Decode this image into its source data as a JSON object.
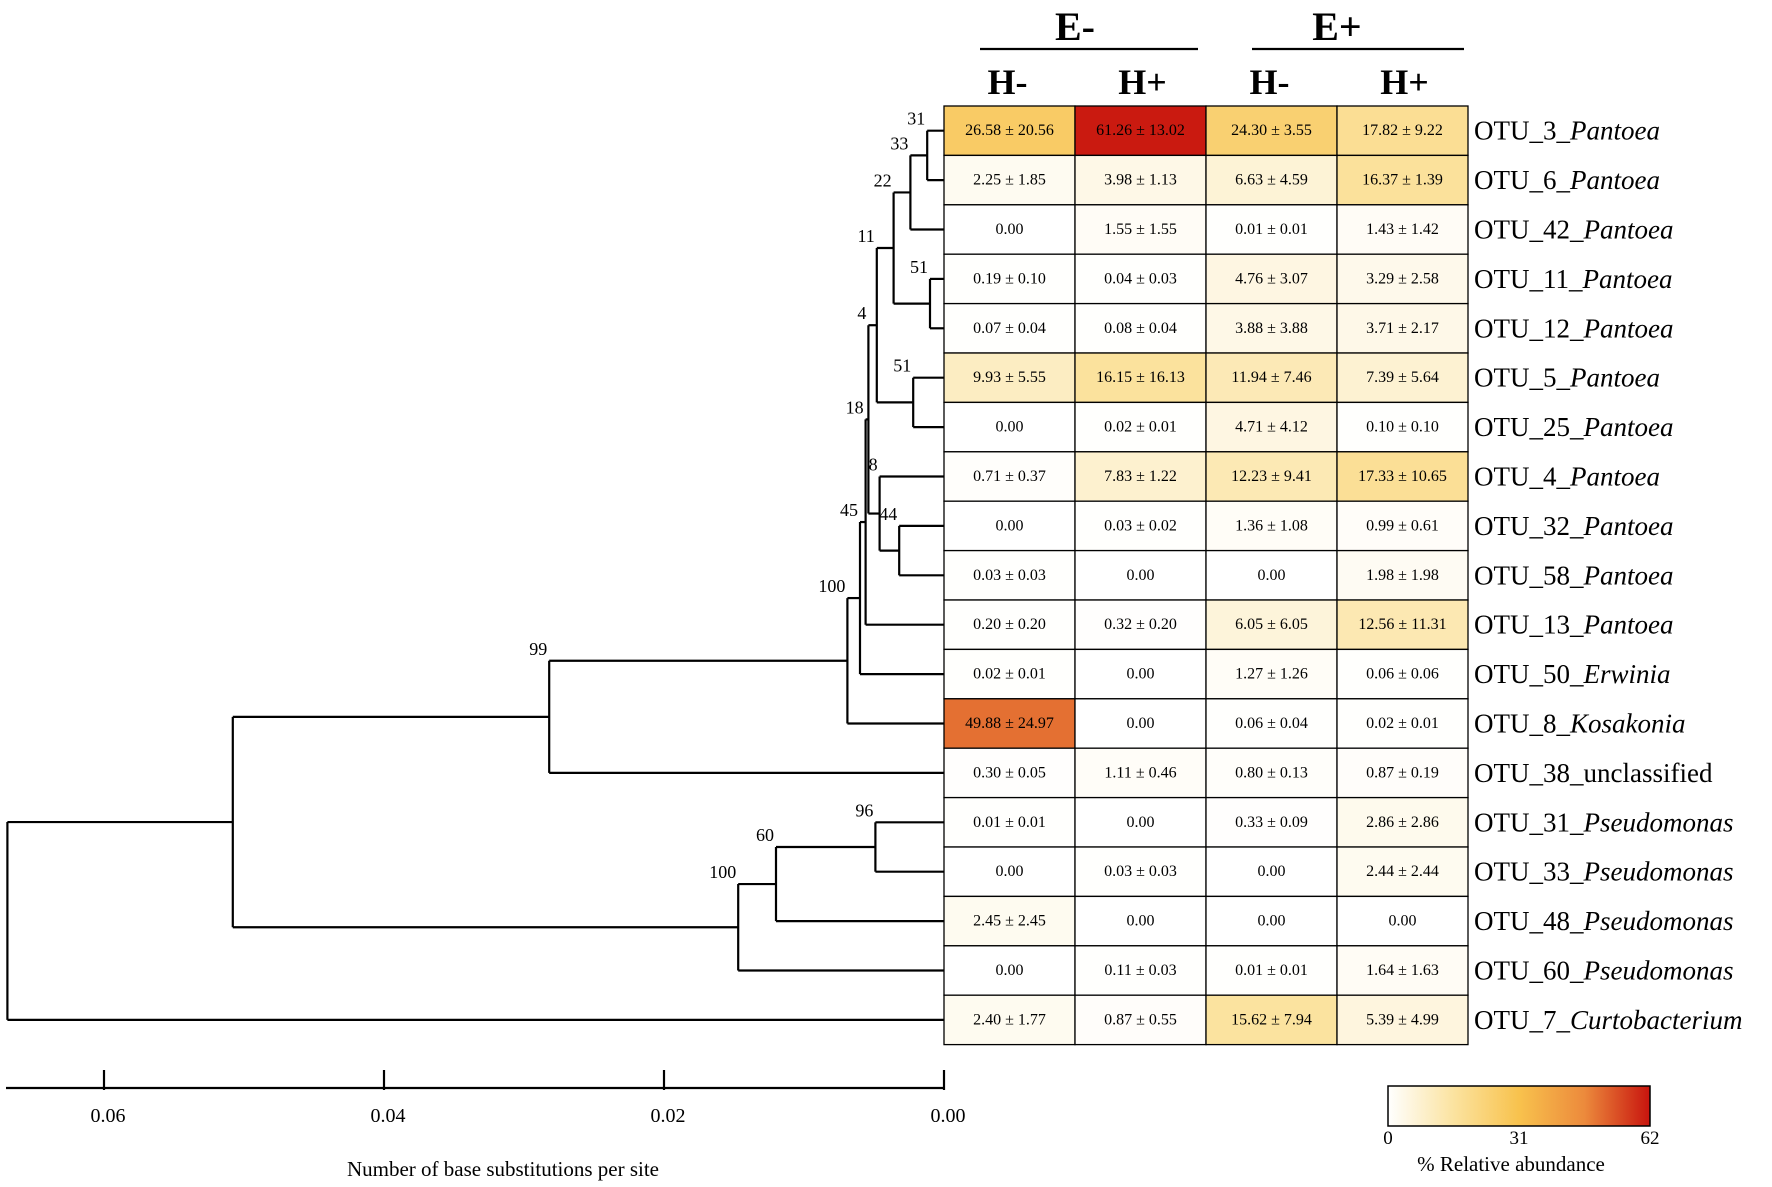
{
  "chart_data": {
    "type": "heatmap",
    "groups": [
      {
        "label": "E-",
        "conditions": [
          "H-",
          "H+"
        ]
      },
      {
        "label": "E+",
        "conditions": [
          "H-",
          "H+"
        ]
      }
    ],
    "rows": [
      {
        "otu": "OTU_3_",
        "taxon": "Pantoea",
        "italic": true,
        "cells": [
          {
            "mean": 26.58,
            "text": "26.58 ± 20.56"
          },
          {
            "mean": 61.26,
            "text": "61.26 ± 13.02"
          },
          {
            "mean": 24.3,
            "text": "24.30 ± 3.55"
          },
          {
            "mean": 17.82,
            "text": "17.82 ± 9.22"
          }
        ]
      },
      {
        "otu": "OTU_6_",
        "taxon": "Pantoea",
        "italic": true,
        "cells": [
          {
            "mean": 2.25,
            "text": "2.25 ± 1.85"
          },
          {
            "mean": 3.98,
            "text": "3.98 ± 1.13"
          },
          {
            "mean": 6.63,
            "text": "6.63 ± 4.59"
          },
          {
            "mean": 16.37,
            "text": "16.37 ± 1.39"
          }
        ]
      },
      {
        "otu": "OTU_42_",
        "taxon": "Pantoea",
        "italic": true,
        "cells": [
          {
            "mean": 0.0,
            "text": "0.00"
          },
          {
            "mean": 1.55,
            "text": "1.55 ± 1.55"
          },
          {
            "mean": 0.01,
            "text": "0.01 ± 0.01"
          },
          {
            "mean": 1.43,
            "text": "1.43 ± 1.42"
          }
        ]
      },
      {
        "otu": "OTU_11_",
        "taxon": "Pantoea",
        "italic": true,
        "cells": [
          {
            "mean": 0.19,
            "text": "0.19 ± 0.10"
          },
          {
            "mean": 0.04,
            "text": "0.04 ± 0.03"
          },
          {
            "mean": 4.76,
            "text": "4.76 ± 3.07"
          },
          {
            "mean": 3.29,
            "text": "3.29 ± 2.58"
          }
        ]
      },
      {
        "otu": "OTU_12_",
        "taxon": "Pantoea",
        "italic": true,
        "cells": [
          {
            "mean": 0.07,
            "text": "0.07 ± 0.04"
          },
          {
            "mean": 0.08,
            "text": "0.08 ± 0.04"
          },
          {
            "mean": 3.88,
            "text": "3.88 ± 3.88"
          },
          {
            "mean": 3.71,
            "text": "3.71 ± 2.17"
          }
        ]
      },
      {
        "otu": "OTU_5_",
        "taxon": "Pantoea",
        "italic": true,
        "cells": [
          {
            "mean": 9.93,
            "text": "9.93 ± 5.55"
          },
          {
            "mean": 16.15,
            "text": "16.15 ± 16.13"
          },
          {
            "mean": 11.94,
            "text": "11.94 ± 7.46"
          },
          {
            "mean": 7.39,
            "text": "7.39 ± 5.64"
          }
        ]
      },
      {
        "otu": "OTU_25_",
        "taxon": "Pantoea",
        "italic": true,
        "cells": [
          {
            "mean": 0.0,
            "text": "0.00"
          },
          {
            "mean": 0.02,
            "text": "0.02 ± 0.01"
          },
          {
            "mean": 4.71,
            "text": "4.71 ± 4.12"
          },
          {
            "mean": 0.1,
            "text": "0.10 ± 0.10"
          }
        ]
      },
      {
        "otu": "OTU_4_",
        "taxon": "Pantoea",
        "italic": true,
        "cells": [
          {
            "mean": 0.71,
            "text": "0.71 ± 0.37"
          },
          {
            "mean": 7.83,
            "text": "7.83 ± 1.22"
          },
          {
            "mean": 12.23,
            "text": "12.23 ± 9.41"
          },
          {
            "mean": 17.33,
            "text": "17.33 ± 10.65"
          }
        ]
      },
      {
        "otu": "OTU_32_",
        "taxon": "Pantoea",
        "italic": true,
        "cells": [
          {
            "mean": 0.0,
            "text": "0.00"
          },
          {
            "mean": 0.03,
            "text": "0.03 ± 0.02"
          },
          {
            "mean": 1.36,
            "text": "1.36 ± 1.08"
          },
          {
            "mean": 0.99,
            "text": "0.99 ± 0.61"
          }
        ]
      },
      {
        "otu": "OTU_58_",
        "taxon": "Pantoea",
        "italic": true,
        "cells": [
          {
            "mean": 0.03,
            "text": "0.03 ± 0.03"
          },
          {
            "mean": 0.0,
            "text": "0.00"
          },
          {
            "mean": 0.0,
            "text": "0.00"
          },
          {
            "mean": 1.98,
            "text": "1.98 ± 1.98"
          }
        ]
      },
      {
        "otu": "OTU_13_",
        "taxon": "Pantoea",
        "italic": true,
        "cells": [
          {
            "mean": 0.2,
            "text": "0.20 ± 0.20"
          },
          {
            "mean": 0.32,
            "text": "0.32 ± 0.20"
          },
          {
            "mean": 6.05,
            "text": "6.05 ± 6.05"
          },
          {
            "mean": 12.56,
            "text": "12.56 ± 11.31"
          }
        ]
      },
      {
        "otu": "OTU_50_",
        "taxon": "Erwinia",
        "italic": true,
        "cells": [
          {
            "mean": 0.02,
            "text": "0.02 ± 0.01"
          },
          {
            "mean": 0.0,
            "text": "0.00"
          },
          {
            "mean": 1.27,
            "text": "1.27 ± 1.26"
          },
          {
            "mean": 0.06,
            "text": "0.06 ± 0.06"
          }
        ]
      },
      {
        "otu": "OTU_8_",
        "taxon": "Kosakonia",
        "italic": true,
        "cells": [
          {
            "mean": 49.88,
            "text": "49.88 ± 24.97"
          },
          {
            "mean": 0.0,
            "text": "0.00"
          },
          {
            "mean": 0.06,
            "text": "0.06 ± 0.04"
          },
          {
            "mean": 0.02,
            "text": "0.02 ± 0.01"
          }
        ]
      },
      {
        "otu": "OTU_38_",
        "taxon": "unclassified",
        "italic": false,
        "cells": [
          {
            "mean": 0.3,
            "text": "0.30 ± 0.05"
          },
          {
            "mean": 1.11,
            "text": "1.11 ± 0.46"
          },
          {
            "mean": 0.8,
            "text": "0.80 ± 0.13"
          },
          {
            "mean": 0.87,
            "text": "0.87 ± 0.19"
          }
        ]
      },
      {
        "otu": "OTU_31_",
        "taxon": "Pseudomonas",
        "italic": true,
        "cells": [
          {
            "mean": 0.01,
            "text": "0.01 ± 0.01"
          },
          {
            "mean": 0.0,
            "text": "0.00"
          },
          {
            "mean": 0.33,
            "text": "0.33 ± 0.09"
          },
          {
            "mean": 2.86,
            "text": "2.86 ± 2.86"
          }
        ]
      },
      {
        "otu": "OTU_33_",
        "taxon": "Pseudomonas",
        "italic": true,
        "cells": [
          {
            "mean": 0.0,
            "text": "0.00"
          },
          {
            "mean": 0.03,
            "text": "0.03 ± 0.03"
          },
          {
            "mean": 0.0,
            "text": "0.00"
          },
          {
            "mean": 2.44,
            "text": "2.44 ± 2.44"
          }
        ]
      },
      {
        "otu": "OTU_48_",
        "taxon": "Pseudomonas",
        "italic": true,
        "cells": [
          {
            "mean": 2.45,
            "text": "2.45 ± 2.45"
          },
          {
            "mean": 0.0,
            "text": "0.00"
          },
          {
            "mean": 0.0,
            "text": "0.00"
          },
          {
            "mean": 0.0,
            "text": "0.00"
          }
        ]
      },
      {
        "otu": "OTU_60_",
        "taxon": "Pseudomonas",
        "italic": true,
        "cells": [
          {
            "mean": 0.0,
            "text": "0.00"
          },
          {
            "mean": 0.11,
            "text": "0.11 ± 0.03"
          },
          {
            "mean": 0.01,
            "text": "0.01 ± 0.01"
          },
          {
            "mean": 1.64,
            "text": "1.64 ± 1.63"
          }
        ]
      },
      {
        "otu": "OTU_7_",
        "taxon": "Curtobacterium",
        "italic": true,
        "cells": [
          {
            "mean": 2.4,
            "text": "2.40 ± 1.77"
          },
          {
            "mean": 0.87,
            "text": "0.87 ± 0.55"
          },
          {
            "mean": 15.62,
            "text": "15.62 ± 7.94"
          },
          {
            "mean": 5.39,
            "text": "5.39 ± 4.99"
          }
        ]
      }
    ],
    "tree": {
      "axis_title": "Number of base substitutions per site",
      "axis_ticks": [
        0.06,
        0.04,
        0.02,
        0.0
      ],
      "axis_tick_labels": [
        "0.06",
        "0.04",
        "0.02",
        "0.00"
      ],
      "axis_max": 0.067,
      "clades": [
        {
          "id": "c31",
          "children": [
            0,
            1
          ],
          "depth": 0.0012,
          "bootstrap": "31"
        },
        {
          "id": "c33",
          "children": [
            "c31",
            2
          ],
          "depth": 0.0024,
          "bootstrap": "33"
        },
        {
          "id": "c51a",
          "children": [
            3,
            4
          ],
          "depth": 0.001,
          "bootstrap": "51"
        },
        {
          "id": "c22",
          "children": [
            "c33",
            "c51a"
          ],
          "depth": 0.0036,
          "bootstrap": "22"
        },
        {
          "id": "c51b",
          "children": [
            5,
            6
          ],
          "depth": 0.0022,
          "bootstrap": "51"
        },
        {
          "id": "c11",
          "children": [
            "c22",
            "c51b"
          ],
          "depth": 0.0048,
          "bootstrap": "11"
        },
        {
          "id": "c44",
          "children": [
            8,
            9
          ],
          "depth": 0.0032,
          "bootstrap": "44"
        },
        {
          "id": "c8",
          "children": [
            7,
            "c44"
          ],
          "depth": 0.0046,
          "bootstrap": "8"
        },
        {
          "id": "c4",
          "children": [
            "c11",
            "c8"
          ],
          "depth": 0.0054,
          "bootstrap": "4"
        },
        {
          "id": "c18",
          "children": [
            "c4",
            10
          ],
          "depth": 0.0056,
          "bootstrap": "18"
        },
        {
          "id": "c45",
          "children": [
            "c18",
            11
          ],
          "depth": 0.006,
          "bootstrap": "45"
        },
        {
          "id": "c100a",
          "children": [
            "c45",
            12
          ],
          "depth": 0.0069,
          "bootstrap": "100"
        },
        {
          "id": "c99",
          "children": [
            "c100a",
            13
          ],
          "depth": 0.0282,
          "bootstrap": "99"
        },
        {
          "id": "c96",
          "children": [
            14,
            15
          ],
          "depth": 0.0049,
          "bootstrap": "96"
        },
        {
          "id": "c60",
          "children": [
            "c96",
            16
          ],
          "depth": 0.012,
          "bootstrap": "60"
        },
        {
          "id": "c100b",
          "children": [
            "c60",
            17
          ],
          "depth": 0.0147,
          "bootstrap": "100"
        },
        {
          "id": "cA",
          "children": [
            "c99",
            "c100b"
          ],
          "depth": 0.0508,
          "bootstrap": ""
        },
        {
          "id": "root",
          "children": [
            "cA",
            18
          ],
          "depth": 0.0669,
          "bootstrap": ""
        }
      ]
    },
    "colorbar": {
      "min": 0,
      "mid": 31,
      "max": 62,
      "tick_labels": [
        "0",
        "31",
        "62"
      ],
      "title": "% Relative abundance",
      "colors": [
        "#ffffff",
        "#fbe3a0",
        "#f8c24d",
        "#ec8a3c",
        "#c8140e"
      ]
    }
  }
}
